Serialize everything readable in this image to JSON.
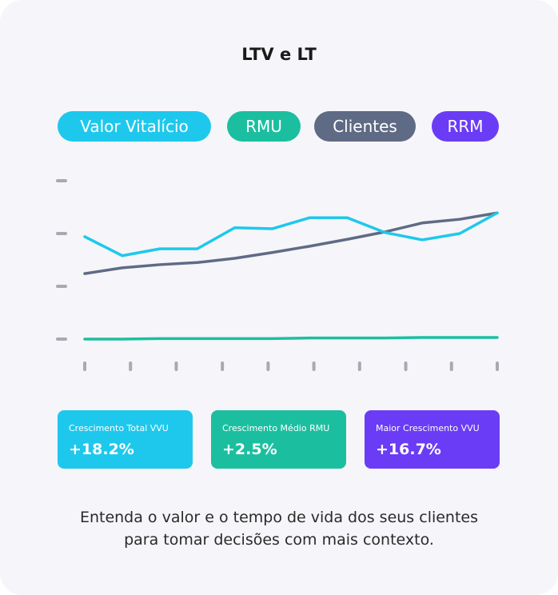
{
  "chart_data": {
    "type": "line",
    "title": "LTV e LT",
    "x": [
      0,
      1,
      2,
      3,
      4,
      5,
      6,
      7,
      8,
      9,
      10,
      11
    ],
    "xlim": [
      0,
      11
    ],
    "xticks": [
      0,
      1.22,
      2.44,
      3.67,
      4.89,
      6.11,
      7.33,
      8.56,
      9.78,
      11
    ],
    "ylim": [
      0,
      3
    ],
    "yticks": [
      0,
      1,
      2,
      3
    ],
    "series": [
      {
        "name": "Valor Vitalício",
        "color": "#1ec8ec",
        "values": [
          1.94,
          1.58,
          1.71,
          1.71,
          2.11,
          2.09,
          2.3,
          2.3,
          2.02,
          1.88,
          2.0,
          2.39
        ]
      },
      {
        "name": "RMU",
        "color": "#1bbfa0",
        "values": [
          0,
          0,
          0.01,
          0.01,
          0.01,
          0.01,
          0.02,
          0.02,
          0.02,
          0.03,
          0.03,
          0.03
        ]
      },
      {
        "name": "Clientes",
        "color": "#5f6b85",
        "values": [
          1.24,
          1.35,
          1.41,
          1.45,
          1.53,
          1.64,
          1.76,
          1.89,
          2.03,
          2.2,
          2.27,
          2.39
        ]
      },
      {
        "name": "RRM",
        "color": "#6b3cf5",
        "values": [
          null,
          null,
          null,
          null,
          null,
          null,
          null,
          null,
          null,
          null,
          null,
          null
        ]
      }
    ]
  },
  "stats": [
    {
      "label": "Crescimento Total VVU",
      "value": "+18.2%",
      "color": "#1ec8ec"
    },
    {
      "label": "Crescimento Médio RMU",
      "value": "+2.5%",
      "color": "#1bbfa0"
    },
    {
      "label": "Maior Crescimento VVU",
      "value": "+16.7%",
      "color": "#6b3cf5"
    }
  ],
  "footer": [
    "Entenda o valor e o tempo de vida dos seus clientes",
    "para tomar decisões com mais contexto."
  ]
}
